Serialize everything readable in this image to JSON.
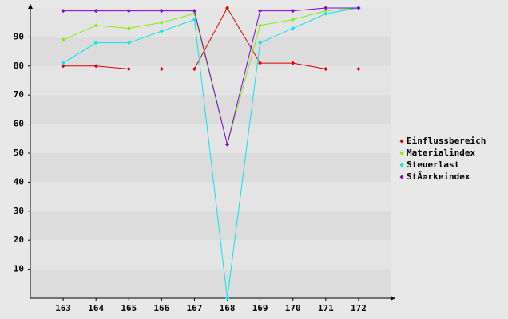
{
  "chart_data": {
    "type": "line",
    "categories": [
      "163",
      "164",
      "165",
      "166",
      "167",
      "168",
      "169",
      "170",
      "171",
      "172"
    ],
    "series": [
      {
        "name": "Einflussbereich",
        "color": "#e00000",
        "values": [
          80,
          80,
          79,
          79,
          79,
          100,
          81,
          81,
          79,
          79
        ]
      },
      {
        "name": "Materialindex",
        "color": "#80f000",
        "values": [
          89,
          94,
          93,
          95,
          98,
          53,
          94,
          96,
          99,
          100
        ]
      },
      {
        "name": "Steuerlast",
        "color": "#00e8f0",
        "values": [
          81,
          88,
          88,
          92,
          96,
          0,
          88,
          93,
          98,
          100
        ]
      },
      {
        "name": "StÃ¤rkeindex",
        "color": "#8000e0",
        "values": [
          99,
          99,
          99,
          99,
          99,
          53,
          99,
          99,
          100,
          100
        ]
      }
    ],
    "ylim": [
      0,
      100
    ],
    "yticks": [
      10,
      20,
      30,
      40,
      50,
      60,
      70,
      80,
      90
    ],
    "grid": true,
    "legend": "right"
  }
}
